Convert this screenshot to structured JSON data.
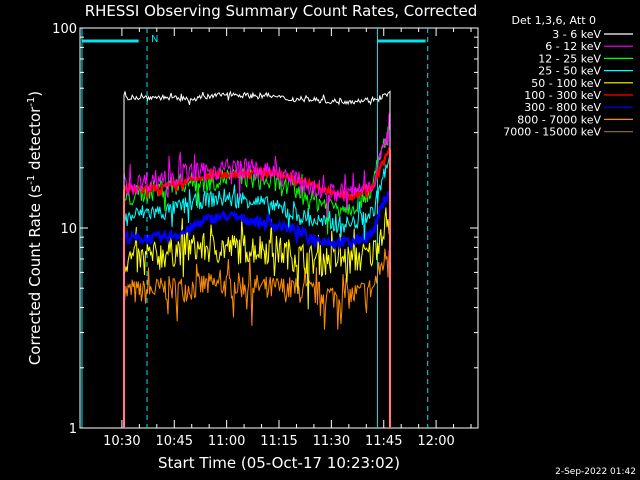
{
  "chart_data": {
    "type": "line",
    "title": "RHESSI Observing Summary Count Rates, Corrected",
    "xlabel": "Start Time (05-Oct-17 10:23:02)",
    "ylabel_main": "Corrected Count Rate (s",
    "ylabel_sup": "-1",
    "ylabel_mid": " detector",
    "ylabel_end": ")",
    "footer": "2-Sep-2022 01:42",
    "yscale": "log",
    "ylim": [
      1,
      100
    ],
    "xlim_minutes": [
      10.3,
      12.2
    ],
    "x_ticks": [
      {
        "label": "10:30",
        "t": 10.5
      },
      {
        "label": "10:45",
        "t": 10.75
      },
      {
        "label": "11:00",
        "t": 11.0
      },
      {
        "label": "11:15",
        "t": 11.25
      },
      {
        "label": "11:30",
        "t": 11.5
      },
      {
        "label": "11:45",
        "t": 11.75
      },
      {
        "label": "12:00",
        "t": 12.0
      }
    ],
    "y_ticks": [
      {
        "label": "1",
        "v": 1
      },
      {
        "label": "10",
        "v": 10
      },
      {
        "label": "100",
        "v": 100
      }
    ],
    "legend_title": "Det 1,3,6, Att 0",
    "legend_position": "right",
    "annotations": [
      {
        "label": "N",
        "t": 10.62
      }
    ],
    "series": [
      {
        "name": "3 - 6 keV",
        "color": "#ffffff",
        "x": [
          10.51,
          10.6,
          10.7,
          10.8,
          10.9,
          11.0,
          11.1,
          11.2,
          11.3,
          11.4,
          11.5,
          11.6,
          11.7,
          11.78
        ],
        "y": [
          45,
          45,
          45,
          44,
          45,
          47,
          46,
          46,
          44,
          44,
          43,
          43,
          44,
          47
        ]
      },
      {
        "name": "6 - 12 keV",
        "color": "#ff00ff",
        "x": [
          10.51,
          10.6,
          10.7,
          10.8,
          10.9,
          11.0,
          11.1,
          11.2,
          11.3,
          11.4,
          11.5,
          11.6,
          11.7,
          11.78
        ],
        "y": [
          16,
          17,
          18,
          19,
          19,
          20,
          20,
          19,
          18,
          16,
          15,
          15,
          17,
          30
        ]
      },
      {
        "name": "12 - 25 keV",
        "color": "#00ff00",
        "x": [
          10.51,
          10.6,
          10.7,
          10.8,
          10.9,
          11.0,
          11.1,
          11.2,
          11.3,
          11.4,
          11.5,
          11.6,
          11.7,
          11.78
        ],
        "y": [
          14,
          15,
          16,
          17,
          17,
          18,
          18,
          17,
          16,
          14,
          13,
          13,
          16,
          32
        ]
      },
      {
        "name": "25 - 50 keV",
        "color": "#00ffff",
        "x": [
          10.51,
          10.6,
          10.7,
          10.8,
          10.9,
          11.0,
          11.1,
          11.2,
          11.3,
          11.4,
          11.5,
          11.6,
          11.7,
          11.78
        ],
        "y": [
          11,
          12,
          12,
          13,
          14,
          14,
          14,
          13,
          12,
          11,
          10.5,
          10.5,
          12,
          22
        ]
      },
      {
        "name": "50 - 100 keV",
        "color": "#ffff00",
        "x": [
          10.51,
          10.6,
          10.7,
          10.8,
          10.9,
          11.0,
          11.1,
          11.2,
          11.3,
          11.4,
          11.5,
          11.6,
          11.7,
          11.78
        ],
        "y": [
          7,
          7,
          7.5,
          8,
          8,
          8,
          8,
          8,
          7.5,
          7,
          7,
          7,
          7.5,
          12
        ]
      },
      {
        "name": "100 - 300 keV",
        "color": "#ff0000",
        "x": [
          10.51,
          10.6,
          10.7,
          10.8,
          10.9,
          11.0,
          11.1,
          11.2,
          11.3,
          11.4,
          11.5,
          11.6,
          11.7,
          11.78
        ],
        "y": [
          15.5,
          15.5,
          16,
          17,
          18,
          18.5,
          19,
          19,
          18,
          16.5,
          15,
          14.5,
          16,
          25
        ]
      },
      {
        "name": "300 - 800 keV",
        "color": "#0000ff",
        "x": [
          10.51,
          10.6,
          10.7,
          10.8,
          10.9,
          11.0,
          11.1,
          11.2,
          11.3,
          11.4,
          11.5,
          11.6,
          11.7,
          11.78
        ],
        "y": [
          9,
          8.8,
          9,
          9.5,
          11,
          11.5,
          11,
          10.5,
          10,
          9,
          8.5,
          8.5,
          9.5,
          16
        ]
      },
      {
        "name": "800 - 7000 keV",
        "color": "#ff8c00",
        "x": [
          10.51,
          10.6,
          10.7,
          10.8,
          10.9,
          11.0,
          11.1,
          11.2,
          11.3,
          11.4,
          11.5,
          11.6,
          11.7,
          11.78
        ],
        "y": [
          4.8,
          4.8,
          5,
          5,
          5.2,
          5.2,
          5.2,
          5,
          5,
          4.8,
          4.6,
          4.6,
          5,
          8
        ]
      },
      {
        "name": "7000 - 15000 keV",
        "color": "#8b6914",
        "x": [],
        "y": []
      }
    ],
    "grid": false
  }
}
